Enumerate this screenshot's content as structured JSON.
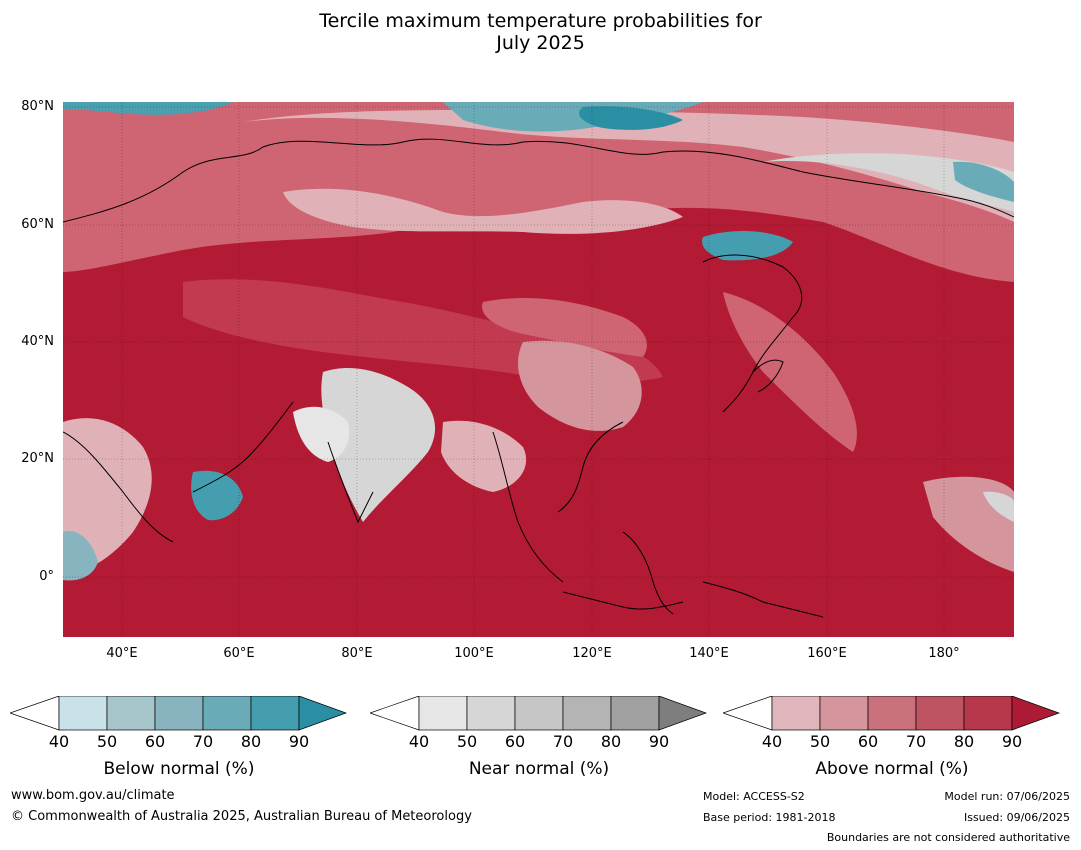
{
  "title": {
    "line1": "Tercile maximum temperature probabilities for",
    "line2": "July 2025"
  },
  "map": {
    "lat_labels": [
      "80°N",
      "60°N",
      "40°N",
      "20°N",
      "0°"
    ],
    "lon_labels": [
      "40°E",
      "60°E",
      "80°E",
      "100°E",
      "120°E",
      "140°E",
      "160°E",
      "180°"
    ],
    "lon_range": [
      30,
      192
    ],
    "lat_range": [
      -10,
      80
    ],
    "predominant_category": "Above normal",
    "colors": {
      "ocean_above": "#b31b34",
      "land_above_high": "#c23a4f",
      "above_mid": "#cf6472",
      "above_low": "#e0b2b8",
      "near_normal": "#d6d6d6",
      "below_normal": "#4aa0b1"
    }
  },
  "colorbars": [
    {
      "title": "Below normal (%)",
      "ticks": [
        "40",
        "50",
        "60",
        "70",
        "80",
        "90"
      ],
      "colors": [
        "#ffffff",
        "#c9e2e9",
        "#a6c6cc",
        "#88b4bf",
        "#6aabb8",
        "#449eaf",
        "#2a8fa3"
      ]
    },
    {
      "title": "Near normal (%)",
      "ticks": [
        "40",
        "50",
        "60",
        "70",
        "80",
        "90"
      ],
      "colors": [
        "#ffffff",
        "#e6e6e6",
        "#d6d6d6",
        "#c6c6c6",
        "#b4b4b4",
        "#a0a0a0",
        "#7e7e7e"
      ]
    },
    {
      "title": "Above normal (%)",
      "ticks": [
        "40",
        "50",
        "60",
        "70",
        "80",
        "90"
      ],
      "colors": [
        "#ffffff",
        "#dfb6bb",
        "#d4969c",
        "#c8707b",
        "#be5361",
        "#b8384b",
        "#ad1a34"
      ]
    }
  ],
  "footer": {
    "website": "www.bom.gov.au/climate",
    "copyright": "© Commonwealth of Australia 2025, Australian Bureau of Meteorology",
    "model": "Model: ACCESS-S2",
    "base_period": "Base period: 1981-2018",
    "model_run": "Model run: 07/06/2025",
    "issued": "Issued: 09/06/2025",
    "disclaimer": "Boundaries are not considered authoritative"
  }
}
